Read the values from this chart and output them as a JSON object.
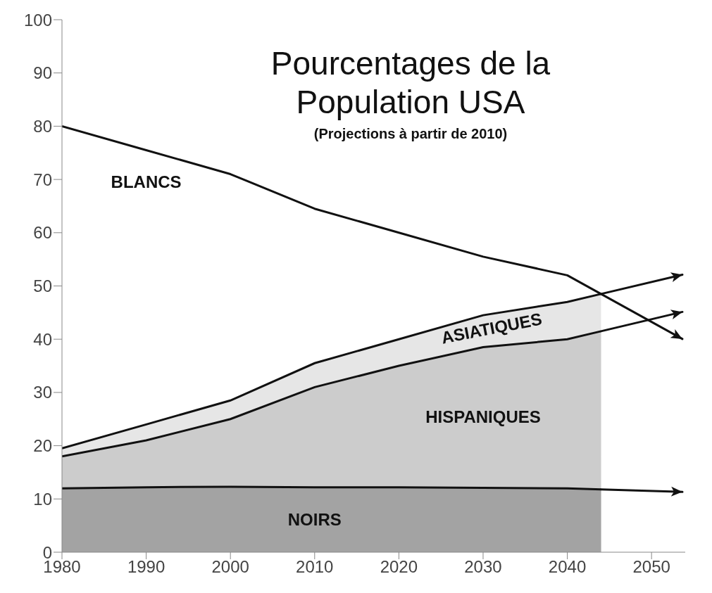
{
  "chart_data": {
    "type": "line",
    "title": "Pourcentages de la Population USA",
    "subtitle": "(Projections à partir de 2010)",
    "series": [
      {
        "name": "BLANCS",
        "color": "#111111",
        "x": [
          1980,
          1990,
          2000,
          2010,
          2020,
          2030,
          2040,
          2044
        ],
        "values": [
          80,
          75.5,
          71,
          64.5,
          60,
          55.5,
          52,
          48.5
        ]
      },
      {
        "name": "ASIATIQUES",
        "type": "area",
        "color": "#e6e6e6",
        "x": [
          1980,
          1990,
          2000,
          2010,
          2020,
          2030,
          2040,
          2044
        ],
        "values": [
          19.5,
          24,
          28.5,
          35.5,
          40,
          44.5,
          47,
          48.5
        ]
      },
      {
        "name": "HISPANIQUES",
        "type": "area",
        "color": "#cccccc",
        "x": [
          1980,
          1990,
          2000,
          2010,
          2020,
          2030,
          2040,
          2044
        ],
        "values": [
          18,
          21,
          25,
          31,
          35,
          38.5,
          40,
          41.5
        ]
      },
      {
        "name": "NOIRS",
        "type": "area",
        "color": "#a3a3a3",
        "x": [
          1980,
          1990,
          2000,
          2010,
          2020,
          2030,
          2040,
          2044
        ],
        "values": [
          12,
          12.2,
          12.3,
          12.2,
          12.2,
          12.1,
          12,
          11.8
        ]
      }
    ],
    "xlim": [
      1980,
      2054
    ],
    "xticks": [
      1980,
      1990,
      2000,
      2010,
      2020,
      2030,
      2040,
      2050
    ],
    "ylim": [
      0,
      100
    ],
    "yticks": [
      0,
      10,
      20,
      30,
      40,
      50,
      60,
      70,
      80,
      90,
      100
    ],
    "grid": false,
    "legend": false
  }
}
